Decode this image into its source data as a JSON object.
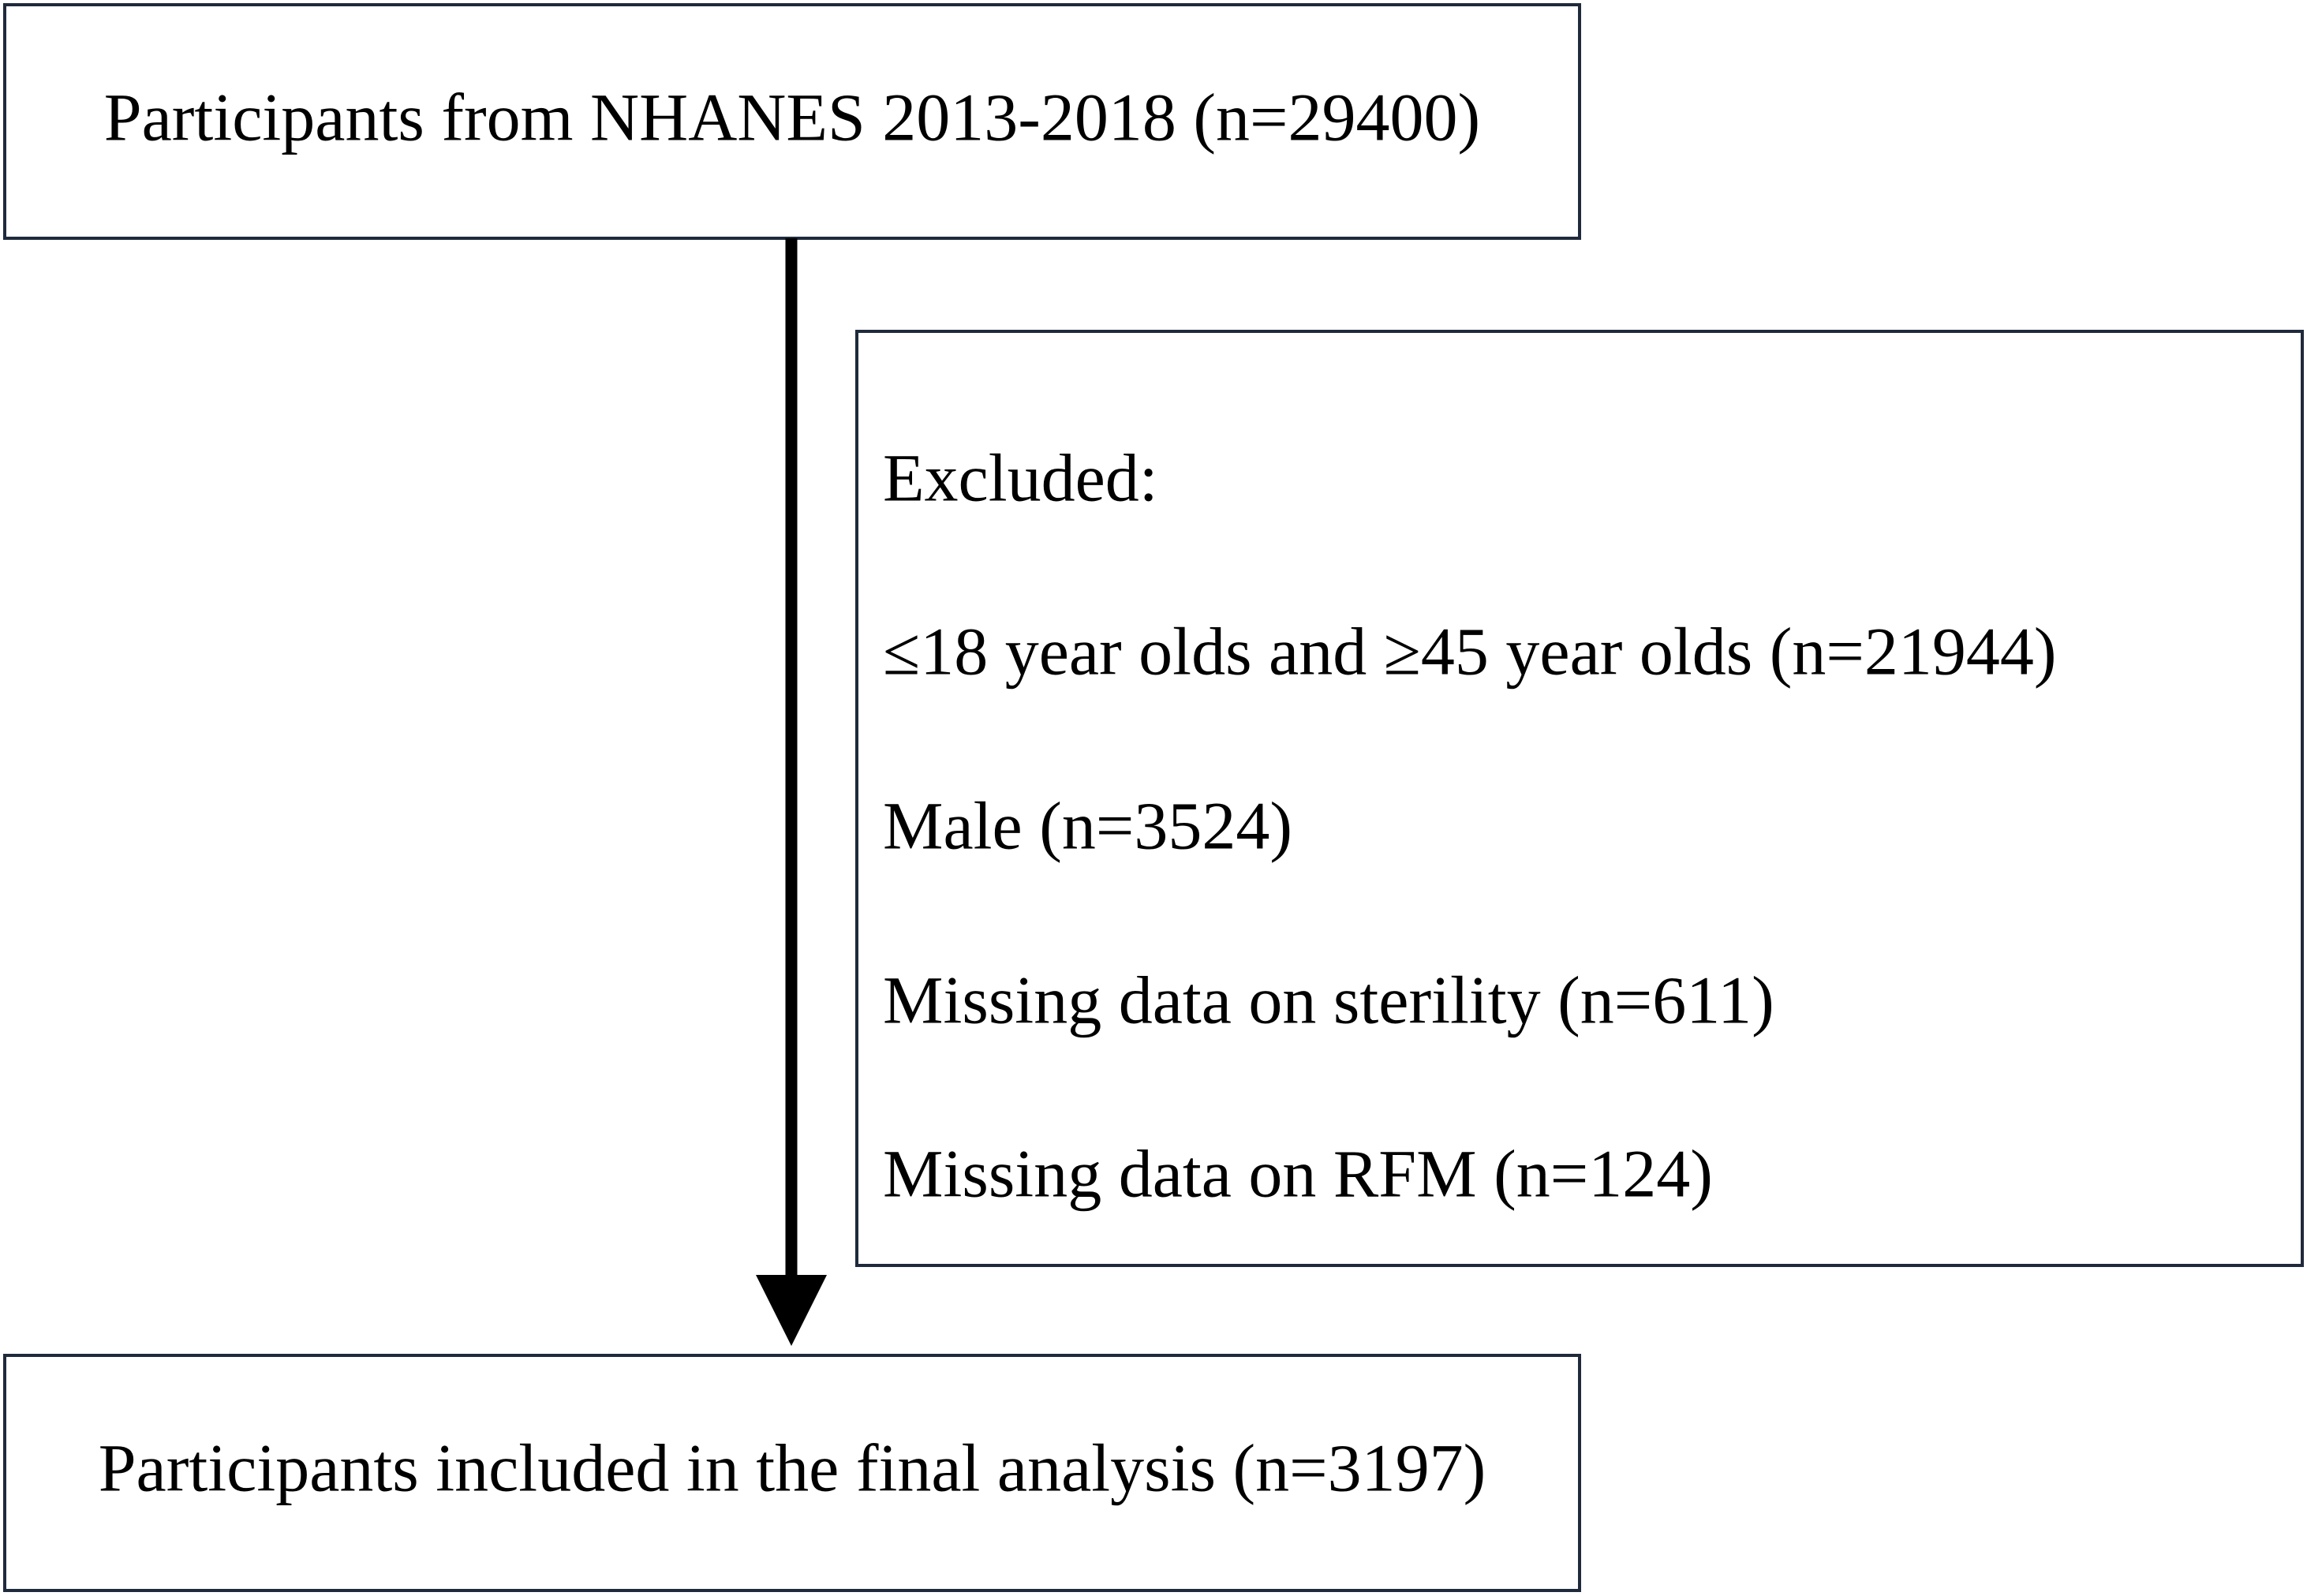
{
  "nodes": [
    {
      "label": "Participants from NHANES 2013-2018 (n=29400)"
    },
    {
      "label": "Participants included in the final analysis (n=3197)"
    }
  ],
  "exclusion": {
    "title": "Excluded:",
    "items": [
      "≤18 year olds and ≥45 year olds (n=21944)",
      "Male (n=3524)",
      "Missing data on sterility (n=611)",
      "Missing data on RFM (n=124)"
    ]
  }
}
